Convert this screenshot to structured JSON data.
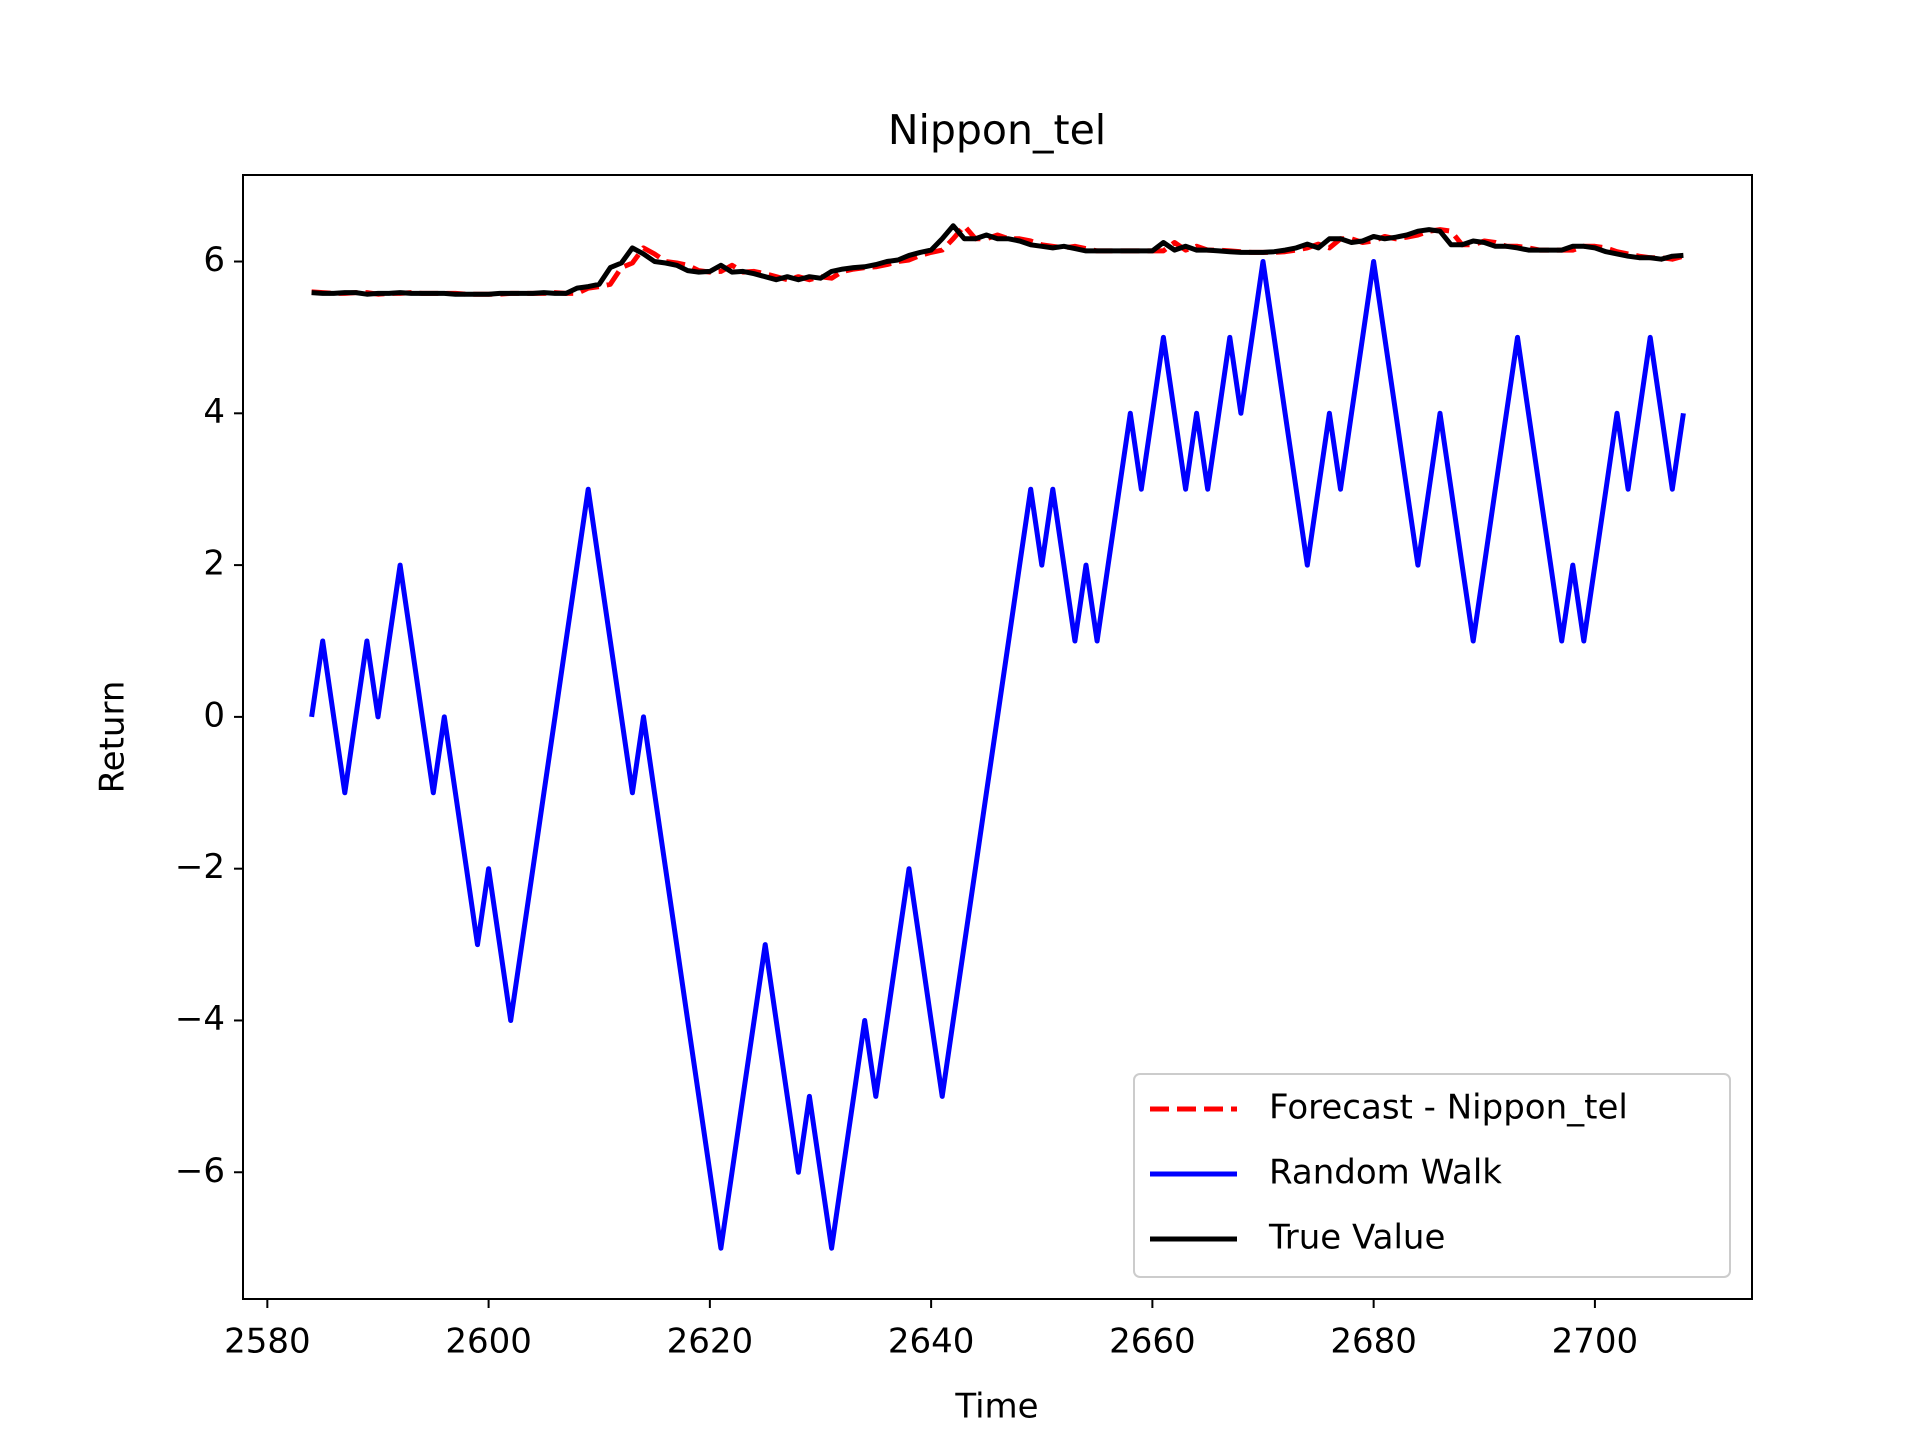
{
  "chart_data": {
    "type": "line",
    "title": "Nippon_tel",
    "xlabel": "Time",
    "ylabel": "Return",
    "x": [
      2584,
      2585,
      2586,
      2587,
      2588,
      2589,
      2590,
      2591,
      2592,
      2593,
      2594,
      2595,
      2596,
      2597,
      2598,
      2599,
      2600,
      2601,
      2602,
      2603,
      2604,
      2605,
      2606,
      2607,
      2608,
      2609,
      2610,
      2611,
      2612,
      2613,
      2614,
      2615,
      2616,
      2617,
      2618,
      2619,
      2620,
      2621,
      2622,
      2623,
      2624,
      2625,
      2626,
      2627,
      2628,
      2629,
      2630,
      2631,
      2632,
      2633,
      2634,
      2635,
      2636,
      2637,
      2638,
      2639,
      2640,
      2641,
      2642,
      2643,
      2644,
      2645,
      2646,
      2647,
      2648,
      2649,
      2650,
      2651,
      2652,
      2653,
      2654,
      2655,
      2656,
      2657,
      2658,
      2659,
      2660,
      2661,
      2662,
      2663,
      2664,
      2665,
      2666,
      2667,
      2668,
      2669,
      2670,
      2671,
      2672,
      2673,
      2674,
      2675,
      2676,
      2677,
      2678,
      2679,
      2680,
      2681,
      2682,
      2683,
      2684,
      2685,
      2686,
      2687,
      2688,
      2689,
      2690,
      2691,
      2692,
      2693,
      2694,
      2695,
      2696,
      2697,
      2698,
      2699,
      2700,
      2701,
      2702,
      2703,
      2704,
      2705,
      2706,
      2707,
      2708
    ],
    "series": [
      {
        "name": "Forecast - Nippon_tel",
        "color": "#ff0000",
        "dashed": true,
        "values": [
          5.6,
          5.59,
          5.58,
          5.58,
          5.59,
          5.59,
          5.57,
          5.58,
          5.58,
          5.59,
          5.58,
          5.58,
          5.58,
          5.58,
          5.57,
          5.57,
          5.57,
          5.57,
          5.58,
          5.58,
          5.58,
          5.58,
          5.59,
          5.58,
          5.58,
          5.65,
          5.67,
          5.7,
          5.92,
          5.98,
          6.18,
          6.1,
          6.0,
          5.98,
          5.95,
          5.88,
          5.86,
          5.87,
          5.95,
          5.86,
          5.87,
          5.84,
          5.8,
          5.76,
          5.8,
          5.76,
          5.8,
          5.78,
          5.87,
          5.9,
          5.92,
          5.93,
          5.96,
          6.0,
          6.02,
          6.08,
          6.12,
          6.15,
          6.3,
          6.47,
          6.3,
          6.3,
          6.35,
          6.3,
          6.3,
          6.27,
          6.22,
          6.2,
          6.18,
          6.2,
          6.17,
          6.14,
          6.14,
          6.14,
          6.14,
          6.14,
          6.14,
          6.14,
          6.25,
          6.15,
          6.2,
          6.15,
          6.15,
          6.14,
          6.13,
          6.12,
          6.12,
          6.12,
          6.13,
          6.15,
          6.18,
          6.23,
          6.18,
          6.3,
          6.3,
          6.25,
          6.27,
          6.33,
          6.3,
          6.32,
          6.35,
          6.4,
          6.42,
          6.4,
          6.22,
          6.22,
          6.27,
          6.25,
          6.2,
          6.2,
          6.18,
          6.15,
          6.15,
          6.15,
          6.15,
          6.2,
          6.2,
          6.18,
          6.13,
          6.1,
          6.07,
          6.05,
          6.05,
          6.03,
          6.07
        ]
      },
      {
        "name": "Random Walk",
        "color": "#0000ff",
        "values": [
          0,
          1,
          0,
          -1,
          0,
          1,
          0,
          1,
          2,
          1,
          0,
          -1,
          0,
          -1,
          -2,
          -3,
          -2,
          -3,
          -4,
          -3,
          -2,
          -1,
          0,
          1,
          2,
          3,
          2,
          1,
          0,
          -1,
          0,
          -1,
          -2,
          -3,
          -4,
          -5,
          -6,
          -7,
          -6,
          -5,
          -4,
          -3,
          -4,
          -5,
          -6,
          -5,
          -6,
          -7,
          -6,
          -5,
          -4,
          -5,
          -4,
          -3,
          -2,
          -3,
          -4,
          -5,
          -4,
          -3,
          -2,
          -1,
          0,
          1,
          2,
          3,
          2,
          3,
          2,
          1,
          2,
          1,
          2,
          3,
          4,
          3,
          4,
          5,
          4,
          3,
          4,
          3,
          4,
          5,
          4,
          5,
          6,
          5,
          4,
          3,
          2,
          3,
          4,
          3,
          4,
          5,
          6,
          5,
          4,
          3,
          2,
          3,
          4,
          3,
          2,
          1,
          2,
          3,
          4,
          5,
          4,
          3,
          2,
          1,
          2,
          1,
          2,
          3,
          4,
          3,
          4,
          5,
          4,
          3,
          4
        ]
      },
      {
        "name": "True Value",
        "color": "#000000",
        "values": [
          5.59,
          5.58,
          5.58,
          5.59,
          5.59,
          5.57,
          5.58,
          5.58,
          5.59,
          5.58,
          5.58,
          5.58,
          5.58,
          5.57,
          5.57,
          5.57,
          5.57,
          5.58,
          5.58,
          5.58,
          5.58,
          5.59,
          5.58,
          5.58,
          5.65,
          5.67,
          5.7,
          5.92,
          5.98,
          6.18,
          6.1,
          6.0,
          5.98,
          5.95,
          5.88,
          5.86,
          5.87,
          5.95,
          5.86,
          5.87,
          5.84,
          5.8,
          5.76,
          5.8,
          5.76,
          5.8,
          5.78,
          5.87,
          5.9,
          5.92,
          5.93,
          5.96,
          6.0,
          6.02,
          6.08,
          6.12,
          6.15,
          6.3,
          6.47,
          6.3,
          6.3,
          6.35,
          6.3,
          6.3,
          6.27,
          6.22,
          6.2,
          6.18,
          6.2,
          6.17,
          6.14,
          6.14,
          6.14,
          6.14,
          6.14,
          6.14,
          6.14,
          6.25,
          6.15,
          6.2,
          6.15,
          6.15,
          6.14,
          6.13,
          6.12,
          6.12,
          6.12,
          6.13,
          6.15,
          6.18,
          6.23,
          6.18,
          6.3,
          6.3,
          6.25,
          6.27,
          6.33,
          6.3,
          6.32,
          6.35,
          6.4,
          6.42,
          6.4,
          6.22,
          6.22,
          6.27,
          6.25,
          6.2,
          6.2,
          6.18,
          6.15,
          6.15,
          6.15,
          6.15,
          6.2,
          6.2,
          6.18,
          6.13,
          6.1,
          6.07,
          6.05,
          6.05,
          6.03,
          6.07,
          6.08
        ]
      }
    ],
    "xlim": [
      2577.8,
      2714.2
    ],
    "xticks": [
      2580,
      2600,
      2620,
      2640,
      2660,
      2680,
      2700
    ],
    "ylim": [
      -7.67,
      7.14
    ],
    "yticks": [
      {
        "value": -6,
        "label": "−6"
      },
      {
        "value": -4,
        "label": "−4"
      },
      {
        "value": -2,
        "label": "−2"
      },
      0,
      2,
      4,
      6
    ],
    "legend": "lower right"
  }
}
